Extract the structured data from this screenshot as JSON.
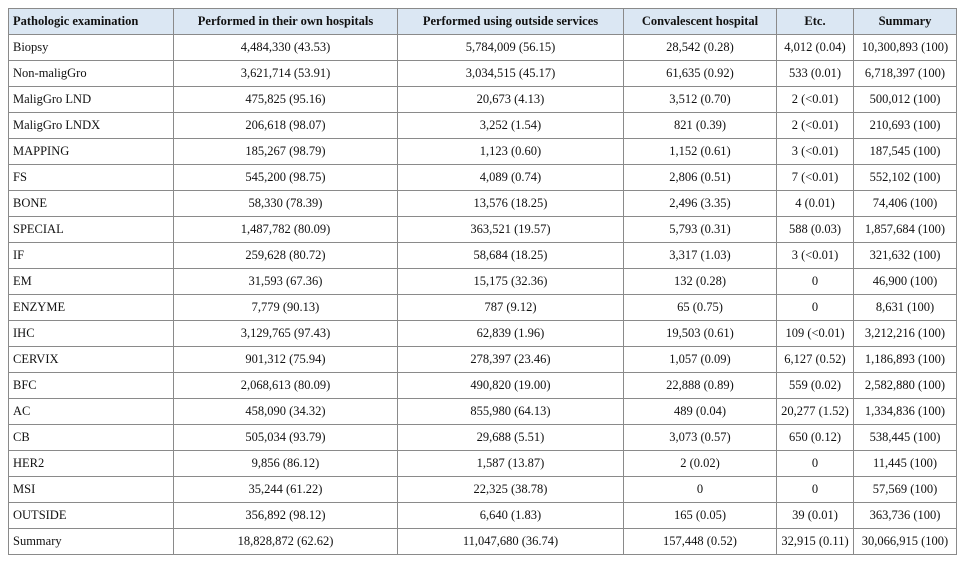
{
  "table": {
    "headers": [
      "Pathologic examination",
      "Performed in their own hospitals",
      "Performed using outside services",
      "Convalescent hospital",
      "Etc.",
      "Summary"
    ],
    "rows": [
      [
        "Biopsy",
        "4,484,330 (43.53)",
        "5,784,009 (56.15)",
        "28,542 (0.28)",
        "4,012 (0.04)",
        "10,300,893 (100)"
      ],
      [
        "Non-maligGro",
        "3,621,714 (53.91)",
        "3,034,515 (45.17)",
        "61,635 (0.92)",
        "533 (0.01)",
        "6,718,397 (100)"
      ],
      [
        "MaligGro LND",
        "475,825 (95.16)",
        "20,673 (4.13)",
        "3,512 (0.70)",
        "2 (<0.01)",
        "500,012 (100)"
      ],
      [
        "MaligGro LNDX",
        "206,618 (98.07)",
        "3,252 (1.54)",
        "821 (0.39)",
        "2 (<0.01)",
        "210,693 (100)"
      ],
      [
        "MAPPING",
        "185,267 (98.79)",
        "1,123 (0.60)",
        "1,152 (0.61)",
        "3 (<0.01)",
        "187,545 (100)"
      ],
      [
        "FS",
        "545,200 (98.75)",
        "4,089 (0.74)",
        "2,806 (0.51)",
        "7 (<0.01)",
        "552,102 (100)"
      ],
      [
        "BONE",
        "58,330 (78.39)",
        "13,576 (18.25)",
        "2,496 (3.35)",
        "4 (0.01)",
        "74,406 (100)"
      ],
      [
        "SPECIAL",
        "1,487,782 (80.09)",
        "363,521 (19.57)",
        "5,793 (0.31)",
        "588 (0.03)",
        "1,857,684 (100)"
      ],
      [
        "IF",
        "259,628 (80.72)",
        "58,684 (18.25)",
        "3,317 (1.03)",
        "3 (<0.01)",
        "321,632 (100)"
      ],
      [
        "EM",
        "31,593 (67.36)",
        "15,175 (32.36)",
        "132 (0.28)",
        "0",
        "46,900 (100)"
      ],
      [
        "ENZYME",
        "7,779 (90.13)",
        "787 (9.12)",
        "65 (0.75)",
        "0",
        "8,631 (100)"
      ],
      [
        "IHC",
        "3,129,765 (97.43)",
        "62,839 (1.96)",
        "19,503 (0.61)",
        "109 (<0.01)",
        "3,212,216 (100)"
      ],
      [
        "CERVIX",
        "901,312 (75.94)",
        "278,397 (23.46)",
        "1,057 (0.09)",
        "6,127 (0.52)",
        "1,186,893 (100)"
      ],
      [
        "BFC",
        "2,068,613 (80.09)",
        "490,820 (19.00)",
        "22,888 (0.89)",
        "559 (0.02)",
        "2,582,880 (100)"
      ],
      [
        "AC",
        "458,090 (34.32)",
        "855,980 (64.13)",
        "489 (0.04)",
        "20,277 (1.52)",
        "1,334,836 (100)"
      ],
      [
        "CB",
        "505,034 (93.79)",
        "29,688 (5.51)",
        "3,073 (0.57)",
        "650 (0.12)",
        "538,445 (100)"
      ],
      [
        "HER2",
        "9,856 (86.12)",
        "1,587 (13.87)",
        "2 (0.02)",
        "0",
        "11,445 (100)"
      ],
      [
        "MSI",
        "35,244 (61.22)",
        "22,325 (38.78)",
        "0",
        "0",
        "57,569 (100)"
      ],
      [
        "OUTSIDE",
        "356,892 (98.12)",
        "6,640 (1.83)",
        "165 (0.05)",
        "39 (0.01)",
        "363,736 (100)"
      ],
      [
        "Summary",
        "18,828,872 (62.62)",
        "11,047,680 (36.74)",
        "157,448 (0.52)",
        "32,915 (0.11)",
        "30,066,915 (100)"
      ]
    ]
  }
}
